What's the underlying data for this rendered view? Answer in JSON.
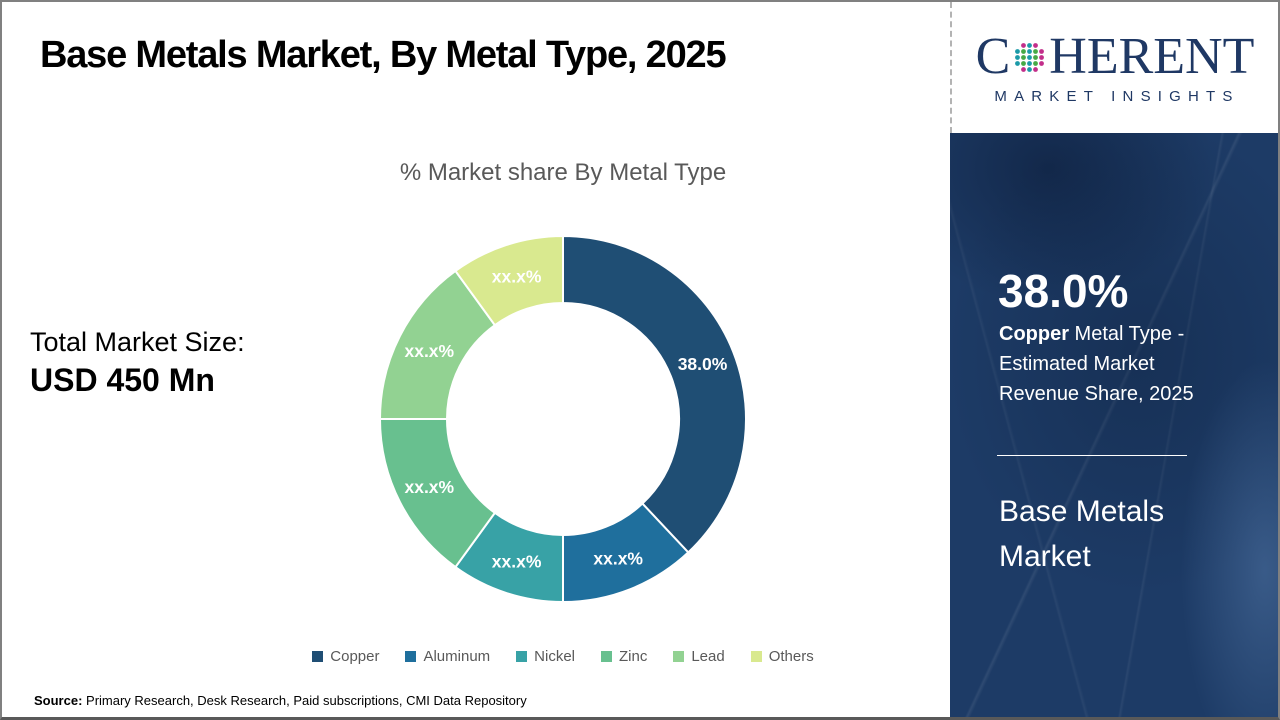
{
  "header": {
    "title": "Base Metals Market, By Metal Type, 2025"
  },
  "branding": {
    "logo_c": "C",
    "logo_rest": "HERENT",
    "tagline": "MARKET INSIGHTS",
    "logo_navy": "#1f3864",
    "panel_navy": "#1d3b66"
  },
  "main": {
    "chart_title": "% Market share By Metal Type",
    "total_label": "Total Market Size:",
    "total_value": "USD 450 Mn",
    "source_label": "Source:",
    "source_text": " Primary Research, Desk Research, Paid subscriptions, CMI Data Repository"
  },
  "sidebar": {
    "stat_value": "38.0%",
    "stat_metal": "Copper",
    "stat_rest": "  Metal Type - Estimated Market Revenue Share, 2025",
    "market_name": "Base Metals Market"
  },
  "chart_data": {
    "type": "pie",
    "subtype": "donut",
    "title": "% Market share By Metal Type",
    "units": "percent",
    "start_angle_deg": 0,
    "direction": "clockwise",
    "legend_position": "bottom",
    "series": [
      {
        "name": "Copper",
        "value": 38.0,
        "label": "38.0%",
        "color": "#1F4E74"
      },
      {
        "name": "Aluminum",
        "value": 12.0,
        "label": "xx.x%",
        "color": "#1F6F9D"
      },
      {
        "name": "Nickel",
        "value": 10.0,
        "label": "xx.x%",
        "color": "#38A2A6"
      },
      {
        "name": "Zinc",
        "value": 15.0,
        "label": "xx.x%",
        "color": "#68C08F"
      },
      {
        "name": "Lead",
        "value": 15.0,
        "label": "xx.x%",
        "color": "#92D292"
      },
      {
        "name": "Others",
        "value": 10.0,
        "label": "xx.x%",
        "color": "#D9E98F"
      }
    ]
  }
}
